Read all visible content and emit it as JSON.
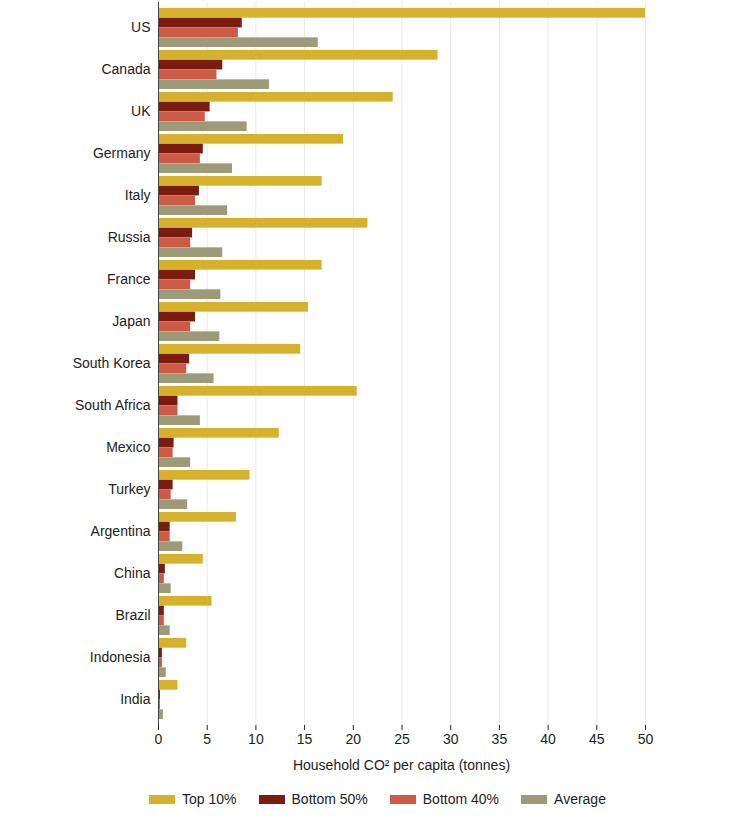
{
  "chart_data": {
    "type": "bar",
    "orientation": "horizontal",
    "x_label": "Household CO² per capita (tonnes)",
    "categories": [
      "US",
      "Canada",
      "UK",
      "Germany",
      "Italy",
      "Russia",
      "France",
      "Japan",
      "South Korea",
      "South Africa",
      "Mexico",
      "Turkey",
      "Argentina",
      "China",
      "Brazil",
      "Indonesia",
      "India"
    ],
    "series": [
      {
        "name": "Top 10%",
        "color": "#d6b12b",
        "values": [
          50,
          28.7,
          24.1,
          19.0,
          16.8,
          21.5,
          16.8,
          15.4,
          14.6,
          20.4,
          12.4,
          9.4,
          8.0,
          4.6,
          5.5,
          2.9,
          2.0
        ]
      },
      {
        "name": "Bottom 50%",
        "color": "#7b1c10",
        "values": [
          8.6,
          6.6,
          5.3,
          4.6,
          4.2,
          3.5,
          3.8,
          3.8,
          3.2,
          2.0,
          1.6,
          1.5,
          1.2,
          0.7,
          0.6,
          0.4,
          0.2
        ]
      },
      {
        "name": "Bottom 40%",
        "color": "#cc5a45",
        "values": [
          8.2,
          6.0,
          4.8,
          4.3,
          3.8,
          3.3,
          3.3,
          3.3,
          2.9,
          2.0,
          1.5,
          1.3,
          1.2,
          0.6,
          0.6,
          0.4,
          0.2
        ]
      },
      {
        "name": "Average",
        "color": "#9c9a78",
        "values": [
          16.4,
          11.4,
          9.1,
          7.6,
          7.1,
          6.6,
          6.4,
          6.3,
          5.7,
          4.3,
          3.3,
          3.0,
          2.5,
          1.3,
          1.2,
          0.8,
          0.5
        ]
      }
    ],
    "xlim": [
      0,
      50
    ],
    "xticks": [
      0,
      5,
      10,
      15,
      20,
      25,
      30,
      35,
      40,
      45,
      50
    ],
    "grid": true,
    "legend": "bottom"
  }
}
